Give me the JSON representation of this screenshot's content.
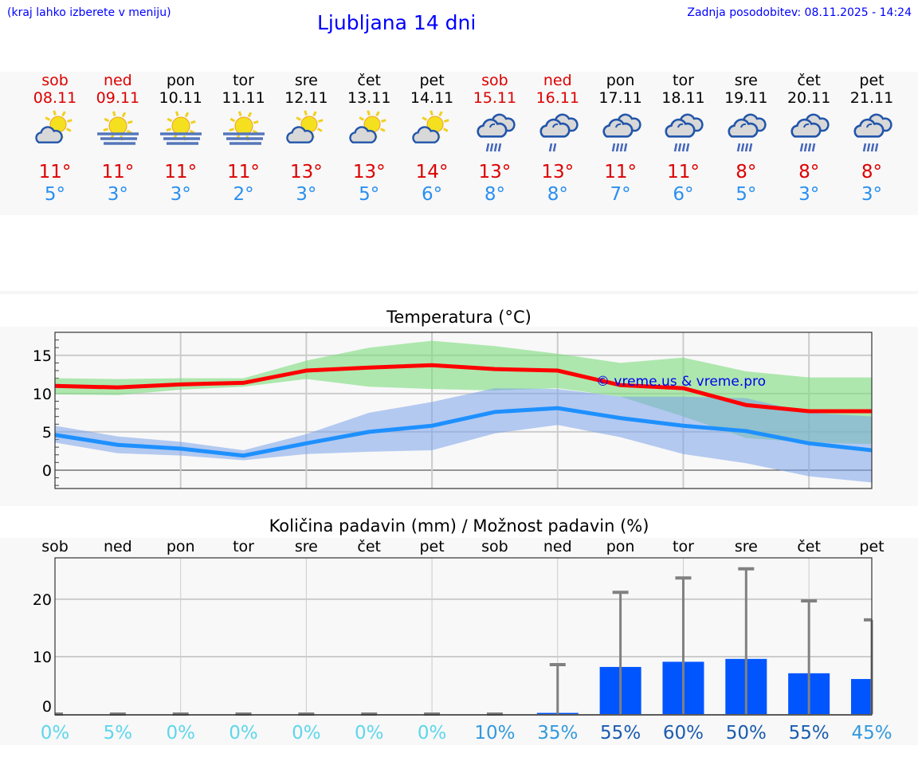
{
  "header": {
    "hint": "(kraj lahko izberete v meniju)",
    "title": "Ljubljana 14 dni",
    "updated": "Zadnja posodobitev: 08.11.2025 - 14:24"
  },
  "colors": {
    "max": "#ff0000",
    "min": "#1e90ff",
    "max_band": "#aee9ae",
    "min_band": "#aec8f2",
    "overlap": "#7ec9a8",
    "bar": "#0055ff",
    "err": "#808080"
  },
  "days": [
    {
      "name": "sob",
      "date": "08.11",
      "weekend": true,
      "icon": "partly-cloudy-icon",
      "tmax": "11°",
      "tmin": "5°"
    },
    {
      "name": "ned",
      "date": "09.11",
      "weekend": true,
      "icon": "sun-fog-icon",
      "tmax": "11°",
      "tmin": "3°"
    },
    {
      "name": "pon",
      "date": "10.11",
      "weekend": false,
      "icon": "sun-fog-icon",
      "tmax": "11°",
      "tmin": "3°"
    },
    {
      "name": "tor",
      "date": "11.11",
      "weekend": false,
      "icon": "sun-fog-icon",
      "tmax": "11°",
      "tmin": "2°"
    },
    {
      "name": "sre",
      "date": "12.11",
      "weekend": false,
      "icon": "partly-cloudy-icon",
      "tmax": "13°",
      "tmin": "3°"
    },
    {
      "name": "čet",
      "date": "13.11",
      "weekend": false,
      "icon": "partly-cloudy-icon",
      "tmax": "13°",
      "tmin": "5°"
    },
    {
      "name": "pet",
      "date": "14.11",
      "weekend": false,
      "icon": "partly-cloudy-icon",
      "tmax": "14°",
      "tmin": "6°"
    },
    {
      "name": "sob",
      "date": "15.11",
      "weekend": true,
      "icon": "cloudy-icon",
      "tmax": "13°",
      "tmin": "8°"
    },
    {
      "name": "ned",
      "date": "16.11",
      "weekend": true,
      "icon": "light-rain-icon",
      "tmax": "13°",
      "tmin": "8°"
    },
    {
      "name": "pon",
      "date": "17.11",
      "weekend": false,
      "icon": "rain-icon",
      "tmax": "11°",
      "tmin": "7°"
    },
    {
      "name": "tor",
      "date": "18.11",
      "weekend": false,
      "icon": "rain-icon",
      "tmax": "11°",
      "tmin": "6°"
    },
    {
      "name": "sre",
      "date": "19.11",
      "weekend": false,
      "icon": "rain-icon",
      "tmax": "8°",
      "tmin": "5°"
    },
    {
      "name": "čet",
      "date": "20.11",
      "weekend": false,
      "icon": "rain-icon",
      "tmax": "8°",
      "tmin": "3°"
    },
    {
      "name": "pet",
      "date": "21.11",
      "weekend": false,
      "icon": "rain-icon",
      "tmax": "8°",
      "tmin": "3°"
    }
  ],
  "chart_data": [
    {
      "type": "line",
      "title": "Temperatura (°C)",
      "watermark": "© vreme.us & vreme.pro",
      "ylim": [
        -2.4,
        18
      ],
      "yticks": [
        0,
        5,
        10,
        15
      ],
      "grid": true,
      "series": [
        {
          "values": [
            11,
            10.8,
            11.2,
            11.4,
            13,
            13.4,
            13.7,
            13.2,
            13,
            11.1,
            10.7,
            8.5,
            7.7,
            7.7
          ],
          "band_high": [
            12,
            11.9,
            12,
            12,
            14.3,
            16,
            16.9,
            16.2,
            15.2,
            14,
            14.7,
            12.9,
            12.1,
            12.1
          ],
          "band_low": [
            9.9,
            9.8,
            10.5,
            10.9,
            11.9,
            10.9,
            10.6,
            10.4,
            10.7,
            9.6,
            7,
            4.2,
            3.6,
            3.4
          ]
        },
        {
          "values": [
            4.6,
            3.3,
            2.8,
            1.9,
            3.5,
            5,
            5.8,
            7.6,
            8.1,
            6.8,
            5.8,
            5.1,
            3.5,
            2.6
          ],
          "band_high": [
            5.8,
            4.4,
            3.7,
            2.6,
            4.7,
            7.5,
            8.9,
            10.7,
            10.6,
            9.6,
            9.6,
            9.4,
            7.5,
            7
          ],
          "band_low": [
            3.6,
            2.2,
            1.9,
            1.3,
            2.1,
            2.4,
            2.6,
            4.8,
            5.9,
            4.3,
            2.1,
            0.9,
            -0.8,
            -1.6
          ]
        }
      ]
    },
    {
      "type": "bar",
      "title": "Količina padavin (mm) / Možnost padavin (%)",
      "ylim": [
        0,
        27.2
      ],
      "yticks": [
        0,
        10,
        20
      ],
      "grid": true,
      "categories": [
        "sob",
        "ned",
        "pon",
        "tor",
        "sre",
        "čet",
        "pet",
        "sob",
        "ned",
        "pon",
        "tor",
        "sre",
        "čet",
        "pet"
      ],
      "values": [
        0,
        0,
        0,
        0,
        0,
        0,
        0,
        0,
        0.2,
        8.2,
        9.1,
        9.6,
        7.1,
        6.1
      ],
      "error_high": [
        0,
        0,
        0,
        0,
        0,
        0,
        0,
        0,
        8.6,
        21.2,
        23.7,
        25.3,
        19.7,
        16.4
      ],
      "probability": [
        "0%",
        "5%",
        "0%",
        "0%",
        "0%",
        "0%",
        "0%",
        "10%",
        "35%",
        "55%",
        "60%",
        "50%",
        "55%",
        "45%"
      ]
    }
  ]
}
